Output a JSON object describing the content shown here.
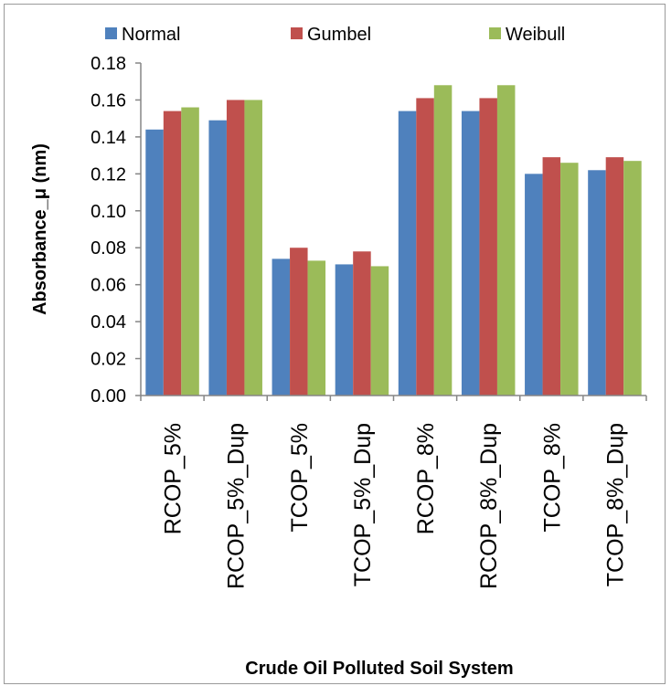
{
  "chart_data": {
    "type": "bar",
    "title": "",
    "xlabel": "Crude Oil Polluted Soil System",
    "ylabel": "Absorbance_μ (nm)",
    "ylim": [
      0,
      0.18
    ],
    "yticks": [
      "0.00",
      "0.02",
      "0.04",
      "0.06",
      "0.08",
      "0.10",
      "0.12",
      "0.14",
      "0.16",
      "0.18"
    ],
    "grid": false,
    "legend_position": "top",
    "categories": [
      "RCOP_5%",
      "RCOP_5%_Dup",
      "TCOP_5%",
      "TCOP_5%_Dup",
      "RCOP_8%",
      "RCOP_8%_Dup",
      "TCOP_8%",
      "TCOP_8%_Dup"
    ],
    "series": [
      {
        "name": "Normal",
        "color": "#4f81bd",
        "values": [
          0.144,
          0.149,
          0.074,
          0.071,
          0.154,
          0.154,
          0.12,
          0.122
        ]
      },
      {
        "name": "Gumbel",
        "color": "#c0504d",
        "values": [
          0.154,
          0.16,
          0.08,
          0.078,
          0.161,
          0.161,
          0.129,
          0.129
        ]
      },
      {
        "name": "Weibull",
        "color": "#9bbb59",
        "values": [
          0.156,
          0.16,
          0.073,
          0.07,
          0.168,
          0.168,
          0.126,
          0.127
        ]
      }
    ]
  }
}
